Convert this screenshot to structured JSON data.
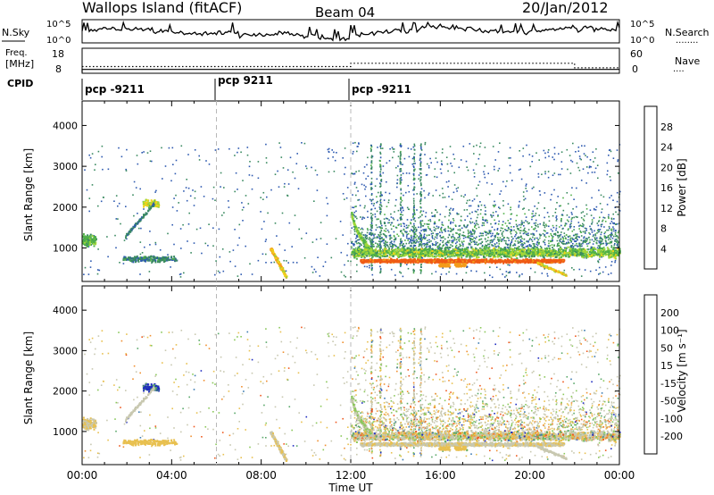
{
  "header": {
    "site": "Wallops Island (fitACF)",
    "beam": "Beam 04",
    "date": "20/Jan/2012"
  },
  "noise_panel": {
    "left_label": "N.Sky",
    "right_label": "N.Search",
    "right_legend": "........",
    "y_ticks_left": [
      "10^5",
      "10^0"
    ],
    "y_ticks_right": [
      "10^5",
      "10^0"
    ]
  },
  "freq_panel": {
    "left_label_line1": "Freq.",
    "left_label_line2": "[MHz]",
    "right_label": "Nave",
    "right_legend": "....",
    "y_ticks_left": [
      "18",
      "8"
    ],
    "y_ticks_right": [
      "60",
      "0"
    ],
    "freq_mhz": 10.8,
    "nave_segments": [
      {
        "start_hour": 0.0,
        "end_hour": 12.0,
        "value": 16
      },
      {
        "start_hour": 12.0,
        "end_hour": 22.0,
        "value": 24
      },
      {
        "start_hour": 22.0,
        "end_hour": 24.0,
        "value": 13
      }
    ]
  },
  "cpid_panel": {
    "label": "CPID",
    "segments": [
      {
        "start_hour": 0.0,
        "label": "pcp -9211"
      },
      {
        "start_hour": 6.0,
        "label": "pcp 9211"
      },
      {
        "start_hour": 12.0,
        "label": "pcp -9211"
      }
    ]
  },
  "power_colorbar": {
    "label": "Power [dB]",
    "ticks": [
      "4",
      "8",
      "12",
      "16",
      "20",
      "24",
      "28"
    ],
    "colors": [
      "#1e24d8",
      "#2e5ab0",
      "#3a8a60",
      "#4fb048",
      "#9fd83a",
      "#f2d21a",
      "#f39a1a",
      "#ef5a15",
      "#e01010"
    ]
  },
  "velocity_colorbar": {
    "label": "Velocity [m s⁻¹]",
    "ticks": [
      "200",
      "100",
      "50",
      "15",
      "-15",
      "-50",
      "-100",
      "-200"
    ],
    "colors": [
      "#1f2bc0",
      "#3a7ab0",
      "#5aa86a",
      "#8ac85a",
      "#c8c8b0",
      "#e8c050",
      "#f09030",
      "#ee5a20",
      "#e01818"
    ]
  },
  "time_axis": {
    "label": "Time UT",
    "ticks": [
      "00:00",
      "04:00",
      "08:00",
      "12:00",
      "16:00",
      "20:00",
      "00:00"
    ]
  },
  "range_axis": {
    "label": "Slant Range [km]",
    "ticks": [
      "1000",
      "2000",
      "3000",
      "4000"
    ]
  },
  "chart_data": {
    "type": "heatmap",
    "x_unit": "hours UT",
    "xlim": [
      0,
      24
    ],
    "ylim": [
      180,
      4600
    ],
    "grid": false,
    "features": [
      {
        "name": "evening band",
        "start_hour": 12.0,
        "end_hour": 24.0,
        "range_km": 900,
        "power_db": 12
      },
      {
        "name": "strong echo band",
        "start_hour": 12.4,
        "end_hour": 21.5,
        "range_km": 700,
        "power_db": 28
      },
      {
        "name": "decaying echo",
        "start_hour": 12.0,
        "end_hour": 12.9,
        "range_start_km": 2000,
        "range_end_km": 950,
        "power_db": 12
      },
      {
        "name": "morning patch",
        "start_hour": 0.0,
        "end_hour": 0.6,
        "range_km": 1200,
        "power_db": 8
      },
      {
        "name": "dawn patch",
        "start_hour": 2.7,
        "end_hour": 3.4,
        "range_km": 2100,
        "power_db": 12
      },
      {
        "name": "morning arc",
        "start_hour": 8.4,
        "end_hour": 9.1,
        "range_start_km": 1000,
        "range_end_km": 300,
        "power_db": 16
      },
      {
        "name": "scattered near-range echo",
        "start_hour": 1.8,
        "end_hour": 4.2,
        "range_km": 750,
        "power_db": 4
      }
    ]
  }
}
